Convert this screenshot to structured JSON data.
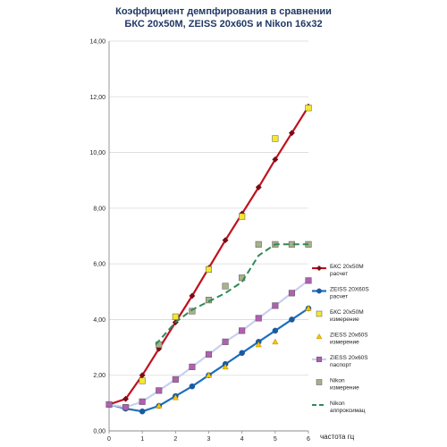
{
  "chart_data": {
    "type": "line",
    "title": [
      "Коэффициент демпфирования в сравнении",
      "БКС 20х50М,  ZEISS 20х60S и Nikon 16х32"
    ],
    "xlabel": "частота гц",
    "ylabel": "",
    "xlim": [
      0,
      6
    ],
    "ylim": [
      0,
      14
    ],
    "x_ticks": [
      "0",
      "1",
      "2",
      "3",
      "4",
      "5",
      "6"
    ],
    "y_ticks": [
      "0,00",
      "2,00",
      "4,00",
      "6,00",
      "8,00",
      "10,00",
      "12,00",
      "14,00"
    ],
    "grid": "horizontal",
    "legend_position": "right",
    "series": [
      {
        "name": [
          "БКС 20х50М",
          "расчет"
        ],
        "kind": "line-marker",
        "color": "#c0101e",
        "marker": "diamond",
        "marker_color": "#7a0c16",
        "x": [
          0,
          0.5,
          1,
          1.5,
          2,
          2.5,
          3,
          3.5,
          4,
          4.5,
          5,
          5.5,
          6
        ],
        "y": [
          0.95,
          1.15,
          2.0,
          2.95,
          3.9,
          4.85,
          5.85,
          6.85,
          7.8,
          8.75,
          9.75,
          10.7,
          11.65
        ]
      },
      {
        "name": [
          "ZEISS 20X60S",
          "расчет"
        ],
        "kind": "line-marker",
        "color": "#1f6fbf",
        "marker": "circle",
        "marker_color": "#1a5aa0",
        "x": [
          0,
          0.5,
          1,
          1.5,
          2,
          2.5,
          3,
          3.5,
          4,
          4.5,
          5,
          5.5,
          6
        ],
        "y": [
          0.95,
          0.8,
          0.7,
          0.9,
          1.25,
          1.6,
          2.0,
          2.4,
          2.8,
          3.2,
          3.6,
          4.0,
          4.4
        ]
      },
      {
        "name": [
          "БКС 20х50М",
          "измерение"
        ],
        "kind": "marker",
        "color": "#f2e830",
        "marker": "square",
        "marker_color": "#f2e830",
        "x": [
          1,
          2,
          3,
          4,
          5,
          6
        ],
        "y": [
          1.8,
          4.1,
          5.8,
          7.7,
          10.5,
          11.6
        ]
      },
      {
        "name": [
          "ZIESS 20x60S",
          "измерение"
        ],
        "kind": "marker",
        "color": "#f5c400",
        "marker": "triangle",
        "marker_color": "#f5c400",
        "x": [
          1.5,
          2,
          3,
          3.5,
          4.5,
          5,
          6
        ],
        "y": [
          0.9,
          1.2,
          2.0,
          2.3,
          3.1,
          3.2,
          4.4
        ]
      },
      {
        "name": [
          "ZIESS 20x60S",
          "паспорт"
        ],
        "kind": "line-marker",
        "color": "#c9cff0",
        "marker": "square",
        "marker_color": "#b060b0",
        "x": [
          0,
          0.5,
          1,
          1.5,
          2,
          2.5,
          3,
          3.5,
          4,
          4.5,
          5,
          5.5,
          6
        ],
        "y": [
          0.95,
          0.85,
          1.05,
          1.45,
          1.85,
          2.3,
          2.75,
          3.2,
          3.6,
          4.05,
          4.5,
          4.95,
          5.4
        ]
      },
      {
        "name": [
          "Nikon",
          "измерение"
        ],
        "kind": "marker",
        "color": "#a8b08a",
        "marker": "square",
        "marker_color": "#a8b08a",
        "x": [
          1.5,
          2.5,
          3,
          3.5,
          4,
          4.5,
          5,
          5.5,
          6
        ],
        "y": [
          3.1,
          4.3,
          4.7,
          5.2,
          5.5,
          6.7,
          6.7,
          6.7,
          6.7
        ]
      },
      {
        "name": [
          "Nikon",
          "аппроксимац"
        ],
        "kind": "dashed",
        "color": "#2e8b57",
        "marker": "none",
        "marker_color": "#2e8b57",
        "x": [
          1.4,
          2,
          2.5,
          3,
          3.5,
          4,
          4.5,
          5,
          5.5,
          6
        ],
        "y": [
          3.1,
          3.9,
          4.35,
          4.65,
          4.95,
          5.35,
          6.3,
          6.7,
          6.7,
          6.7
        ]
      }
    ]
  }
}
